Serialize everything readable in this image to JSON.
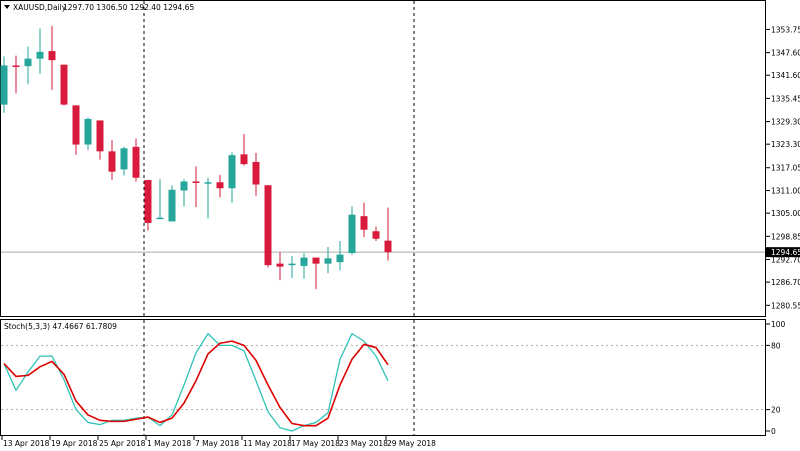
{
  "header": {
    "symbol": "XAUUSD,Daily",
    "ohlc": "1297.70 1306.50 1292.40 1294.65"
  },
  "stoch_header": "Stoch(5,3,3) 47.4667 61.7809",
  "colors": {
    "bull": "#26a69a",
    "bear": "#d81b3c",
    "k_line": "#2ec4b6",
    "d_line": "#e00000",
    "last_price_line": "#aaaaaa",
    "label_bg": "#000000"
  },
  "chart_data": [
    {
      "type": "candlestick",
      "title": "XAUUSD,Daily",
      "ylim": [
        1278.5,
        1360.5
      ],
      "price_ticks": [
        "1353.75",
        "1347.60",
        "1341.60",
        "1335.45",
        "1329.30",
        "1323.30",
        "1317.05",
        "1311.00",
        "1305.00",
        "1298.85",
        "1292.70",
        "1286.70",
        "1280.55"
      ],
      "last_price": "1294.65",
      "date_labels": [
        "13 Apr 2018",
        "19 Apr 2018",
        "25 Apr 2018",
        "1 May 2018",
        "7 May 2018",
        "11 May 2018",
        "17 May 2018",
        "23 May 2018",
        "29 May 2018"
      ],
      "candles": [
        {
          "o": 1333.8,
          "h": 1346.6,
          "l": 1331.6,
          "c": 1344.2
        },
        {
          "o": 1344.2,
          "h": 1346.8,
          "l": 1336.8,
          "c": 1343.8
        },
        {
          "o": 1344.0,
          "h": 1349.2,
          "l": 1339.2,
          "c": 1346.0
        },
        {
          "o": 1346.0,
          "h": 1354.0,
          "l": 1342.0,
          "c": 1347.8
        },
        {
          "o": 1348.0,
          "h": 1354.7,
          "l": 1337.7,
          "c": 1345.6
        },
        {
          "o": 1344.4,
          "h": 1344.4,
          "l": 1333.6,
          "c": 1333.8
        },
        {
          "o": 1333.6,
          "h": 1333.6,
          "l": 1320.5,
          "c": 1323.2
        },
        {
          "o": 1323.2,
          "h": 1330.4,
          "l": 1321.8,
          "c": 1330.0
        },
        {
          "o": 1329.6,
          "h": 1329.6,
          "l": 1319.2,
          "c": 1321.4
        },
        {
          "o": 1321.4,
          "h": 1324.4,
          "l": 1313.8,
          "c": 1316.0
        },
        {
          "o": 1316.6,
          "h": 1322.6,
          "l": 1315.0,
          "c": 1322.2
        },
        {
          "o": 1322.6,
          "h": 1324.8,
          "l": 1313.4,
          "c": 1314.4
        },
        {
          "o": 1313.8,
          "h": 1313.8,
          "l": 1300.4,
          "c": 1302.4
        },
        {
          "o": 1303.4,
          "h": 1314.0,
          "l": 1303.4,
          "c": 1303.8
        },
        {
          "o": 1302.8,
          "h": 1312.4,
          "l": 1302.8,
          "c": 1311.2
        },
        {
          "o": 1311.0,
          "h": 1314.0,
          "l": 1306.8,
          "c": 1313.4
        },
        {
          "o": 1313.4,
          "h": 1317.4,
          "l": 1306.6,
          "c": 1313.2
        },
        {
          "o": 1313.0,
          "h": 1314.4,
          "l": 1303.6,
          "c": 1313.2
        },
        {
          "o": 1313.2,
          "h": 1315.2,
          "l": 1309.2,
          "c": 1311.6
        },
        {
          "o": 1311.6,
          "h": 1321.2,
          "l": 1307.8,
          "c": 1320.4
        },
        {
          "o": 1320.6,
          "h": 1326.0,
          "l": 1317.6,
          "c": 1318.0
        },
        {
          "o": 1318.6,
          "h": 1321.0,
          "l": 1309.6,
          "c": 1312.6
        },
        {
          "o": 1312.4,
          "h": 1312.4,
          "l": 1290.6,
          "c": 1291.2
        },
        {
          "o": 1291.6,
          "h": 1294.6,
          "l": 1287.2,
          "c": 1290.8
        },
        {
          "o": 1291.2,
          "h": 1293.6,
          "l": 1287.8,
          "c": 1291.6
        },
        {
          "o": 1291.0,
          "h": 1294.4,
          "l": 1287.6,
          "c": 1293.2
        },
        {
          "o": 1293.2,
          "h": 1293.2,
          "l": 1284.8,
          "c": 1291.6
        },
        {
          "o": 1291.6,
          "h": 1296.0,
          "l": 1289.0,
          "c": 1293.0
        },
        {
          "o": 1292.0,
          "h": 1297.6,
          "l": 1289.8,
          "c": 1294.0
        },
        {
          "o": 1294.4,
          "h": 1306.8,
          "l": 1294.0,
          "c": 1304.6
        },
        {
          "o": 1304.2,
          "h": 1307.8,
          "l": 1298.6,
          "c": 1300.6
        },
        {
          "o": 1300.2,
          "h": 1301.4,
          "l": 1297.6,
          "c": 1298.2
        },
        {
          "o": 1297.7,
          "h": 1306.5,
          "l": 1292.4,
          "c": 1294.65
        }
      ]
    },
    {
      "type": "line",
      "title": "Stoch(5,3,3) 47.4667 61.7809",
      "ylim": [
        0,
        100
      ],
      "ticks": [
        "100",
        "80",
        "20",
        "0"
      ],
      "levels": [
        80,
        20
      ],
      "series": [
        {
          "key": "k",
          "values": [
            63,
            38,
            55,
            70,
            70,
            48,
            20,
            8,
            6,
            10,
            10,
            12,
            13,
            5,
            15,
            43,
            73,
            91,
            80,
            80,
            75,
            47,
            18,
            3,
            0,
            5,
            8,
            17,
            67,
            91,
            84,
            70,
            47
          ]
        },
        {
          "key": "d",
          "values": [
            63,
            51,
            52,
            60,
            65,
            53,
            28,
            15,
            10,
            9,
            9,
            11,
            13,
            8,
            12,
            26,
            47,
            72,
            82,
            84,
            80,
            66,
            43,
            22,
            7,
            5,
            5,
            12,
            43,
            67,
            81,
            78,
            62
          ]
        }
      ]
    }
  ]
}
